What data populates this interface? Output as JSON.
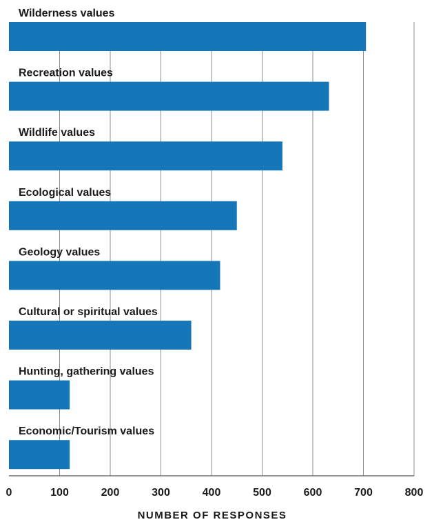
{
  "chart_data": {
    "type": "bar",
    "orientation": "horizontal",
    "categories": [
      "Wilderness values",
      "Recreation values",
      "Wildlife values",
      "Ecological values",
      "Geology values",
      "Cultural or spiritual values",
      "Hunting, gathering values",
      "Economic/Tourism values"
    ],
    "values": [
      705,
      632,
      540,
      450,
      417,
      360,
      120,
      120
    ],
    "xlabel": "NUMBER OF RESPONSES",
    "ylabel": "",
    "xlim": [
      0,
      800
    ],
    "xticks": [
      "0",
      "100",
      "200",
      "300",
      "400",
      "500",
      "600",
      "700",
      "800"
    ],
    "grid": "vertical",
    "bar_color": "#1677b8",
    "legend": "none"
  }
}
